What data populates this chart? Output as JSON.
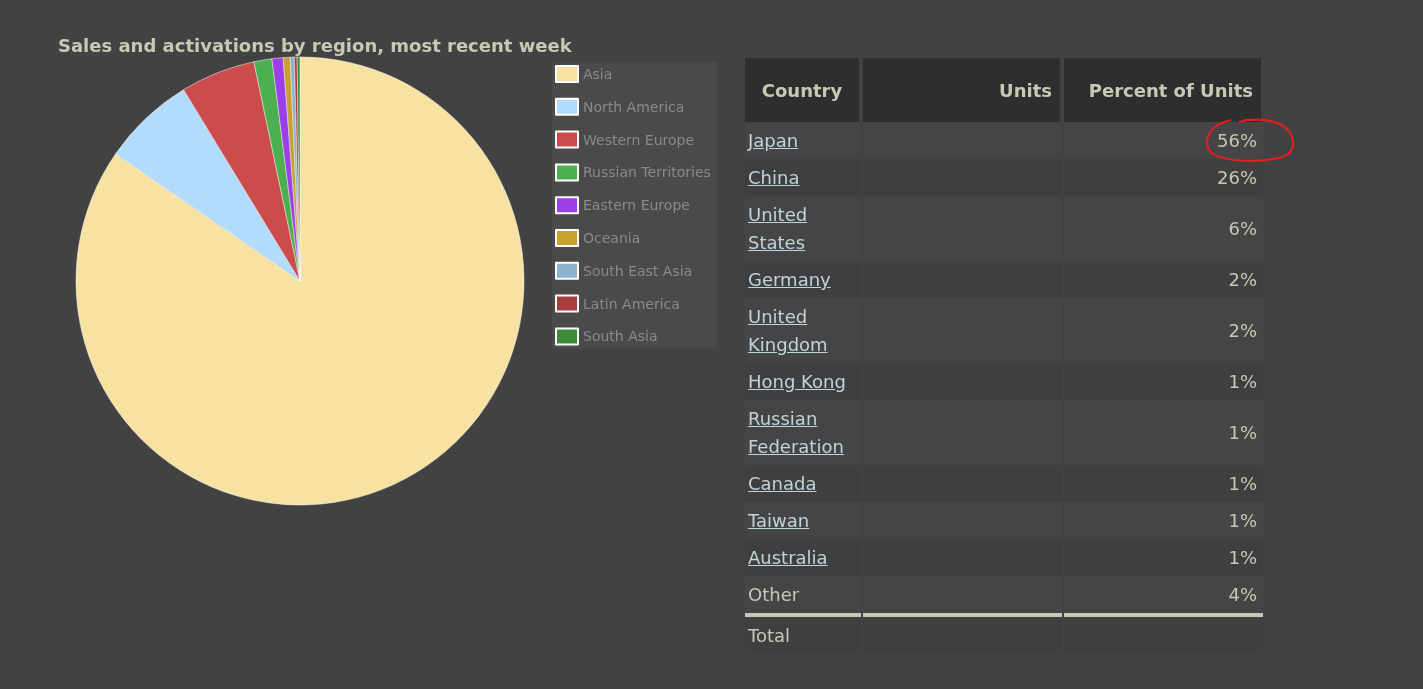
{
  "chart_data": [
    {
      "type": "pie",
      "title": "Sales and activations by region, most recent week",
      "categories": [
        "Asia",
        "North America",
        "Western Europe",
        "Russian Territories",
        "Eastern Europe",
        "Oceania",
        "South East Asia",
        "Latin America",
        "South Asia"
      ],
      "values": [
        84.6,
        6.7,
        5.4,
        1.3,
        0.8,
        0.5,
        0.3,
        0.2,
        0.2
      ],
      "colors": [
        "#f8e2a2",
        "#b3dcfc",
        "#cc4b4b",
        "#4caf50",
        "#9b3fe8",
        "#c8a030",
        "#8db4cc",
        "#a83c3c",
        "#3a8c3a"
      ],
      "legend": "right"
    },
    {
      "type": "other",
      "annotations": [
        "Country",
        "Units",
        "Percent of Units"
      ],
      "categories": [
        "Japan",
        "China",
        "United States",
        "Germany",
        "United Kingdom",
        "Hong Kong",
        "Russian Federation",
        "Canada",
        "Taiwan",
        "Australia",
        "Other",
        "Total"
      ],
      "values": [
        56,
        26,
        6,
        2,
        2,
        1,
        1,
        1,
        1,
        1,
        4,
        null
      ],
      "value_labels": [
        "56%",
        "26%",
        "6%",
        "2%",
        "2%",
        "1%",
        "1%",
        "1%",
        "1%",
        "1%",
        "4%",
        null
      ]
    }
  ]
}
